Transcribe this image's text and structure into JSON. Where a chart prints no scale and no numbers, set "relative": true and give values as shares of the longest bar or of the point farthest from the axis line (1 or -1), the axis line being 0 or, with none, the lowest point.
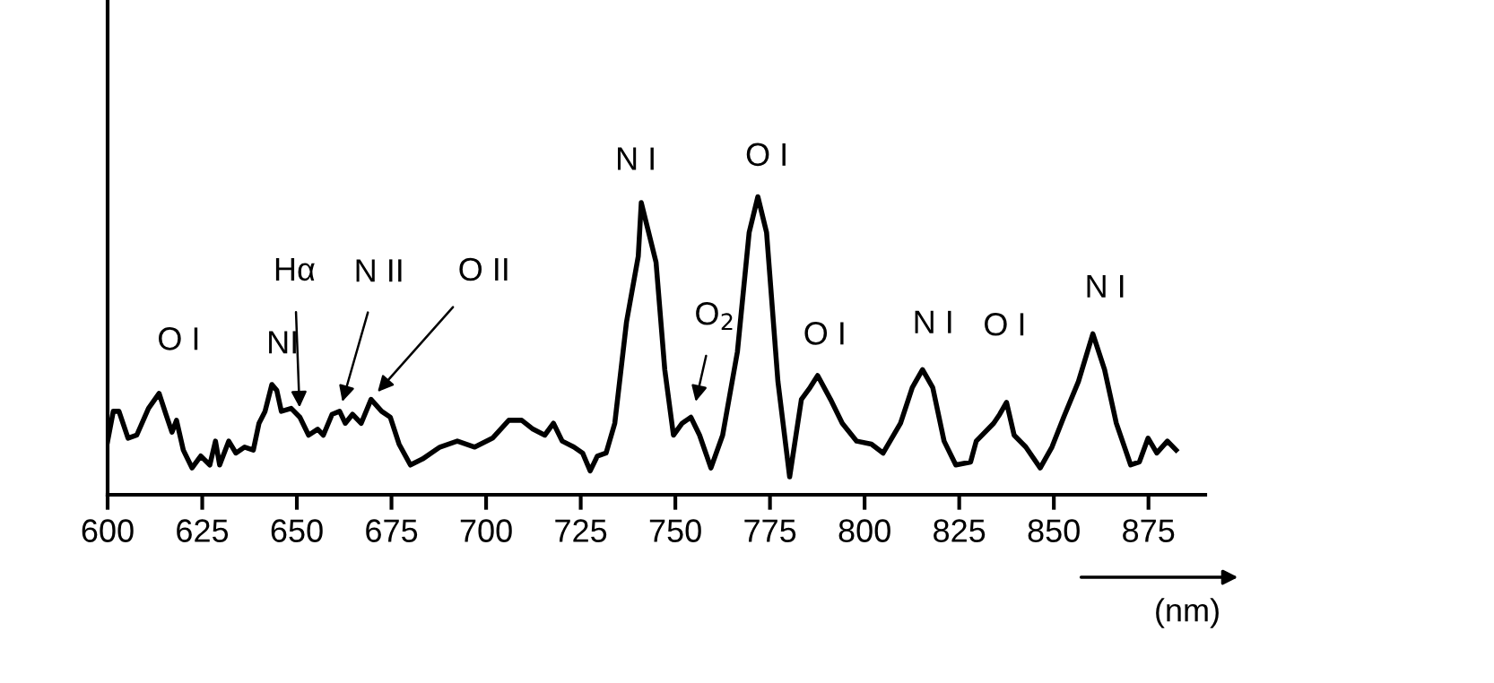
{
  "chart_data": {
    "type": "line",
    "relative": true,
    "xlabel": "(nm)",
    "xlim": [
      600,
      890
    ],
    "xticks": [
      600,
      625,
      650,
      675,
      700,
      725,
      750,
      775,
      800,
      825,
      850,
      875
    ],
    "grid": false,
    "marker": "none",
    "line_style": "solid",
    "series": [
      {
        "color": "#000000",
        "x": [
          600,
          601.5,
          603,
          605.4,
          607.7,
          610.8,
          613.6,
          615.4,
          617,
          618.2,
          620,
          622.3,
          624.6,
          627,
          628.5,
          629.6,
          632,
          633.9,
          636.2,
          638.5,
          640,
          641.6,
          643.4,
          644.7,
          645.9,
          648.5,
          650.8,
          653.1,
          655.5,
          657,
          659.3,
          661.3,
          662.8,
          664.7,
          667,
          669.6,
          672.4,
          674.7,
          677,
          680,
          683.2,
          687.8,
          692.4,
          697,
          701.7,
          706,
          709.4,
          712.4,
          715.5,
          717.8,
          720.1,
          723.2,
          725.5,
          727.5,
          729.4,
          731.7,
          734,
          737.1,
          740.2,
          741,
          744.9,
          747.2,
          749.5,
          751.8,
          754.1,
          756.4,
          759.4,
          762.5,
          766.4,
          769.5,
          771.8,
          774.1,
          777.1,
          780.2,
          783.3,
          785.6,
          787.6,
          791,
          794.1,
          797.9,
          801.8,
          804.9,
          809.5,
          812.6,
          815.3,
          818,
          821,
          824.1,
          828,
          829.5,
          834.1,
          835.7,
          837.5,
          839.5,
          842.6,
          846.4,
          849.5,
          852.6,
          856.5,
          860.3,
          863.4,
          866.5,
          870.3,
          872.6,
          874.9,
          877.2,
          880,
          882.3
        ],
        "values": [
          0.18,
          0.28,
          0.28,
          0.19,
          0.2,
          0.29,
          0.34,
          0.27,
          0.21,
          0.25,
          0.15,
          0.09,
          0.13,
          0.1,
          0.18,
          0.1,
          0.18,
          0.14,
          0.16,
          0.15,
          0.24,
          0.28,
          0.37,
          0.35,
          0.28,
          0.29,
          0.26,
          0.2,
          0.22,
          0.2,
          0.27,
          0.28,
          0.24,
          0.27,
          0.24,
          0.32,
          0.28,
          0.26,
          0.17,
          0.1,
          0.12,
          0.16,
          0.18,
          0.16,
          0.19,
          0.25,
          0.25,
          0.22,
          0.2,
          0.24,
          0.18,
          0.16,
          0.14,
          0.08,
          0.13,
          0.14,
          0.24,
          0.58,
          0.8,
          0.98,
          0.78,
          0.42,
          0.2,
          0.24,
          0.26,
          0.2,
          0.09,
          0.2,
          0.48,
          0.88,
          1.0,
          0.88,
          0.38,
          0.06,
          0.32,
          0.36,
          0.4,
          0.32,
          0.24,
          0.18,
          0.17,
          0.14,
          0.24,
          0.36,
          0.42,
          0.36,
          0.18,
          0.1,
          0.11,
          0.18,
          0.24,
          0.27,
          0.31,
          0.2,
          0.16,
          0.09,
          0.16,
          0.26,
          0.38,
          0.54,
          0.42,
          0.24,
          0.1,
          0.11,
          0.19,
          0.14,
          0.18,
          0.15
        ]
      }
    ],
    "annotations": [
      {
        "text": "O I",
        "x": 613.6,
        "y": 0.34
      },
      {
        "text": "NI",
        "x": 643.4,
        "y": 0.37
      },
      {
        "text": "Hα",
        "x": 650.8,
        "y": 0.26
      },
      {
        "text": "N II",
        "x": 661.3,
        "y": 0.28
      },
      {
        "text": "O II",
        "x": 669.6,
        "y": 0.32
      },
      {
        "text": "N I",
        "x": 741,
        "y": 0.98
      },
      {
        "text": "O I",
        "x": 771.8,
        "y": 1.0
      },
      {
        "text": "O$_{2}$",
        "x": 754.8,
        "y": 0.28
      },
      {
        "text": "O I",
        "x": 787.6,
        "y": 0.4
      },
      {
        "text": "N I",
        "x": 815.3,
        "y": 0.42
      },
      {
        "text": "O I",
        "x": 837.5,
        "y": 0.31
      },
      {
        "text": "N I",
        "x": 860.3,
        "y": 0.54
      }
    ]
  }
}
